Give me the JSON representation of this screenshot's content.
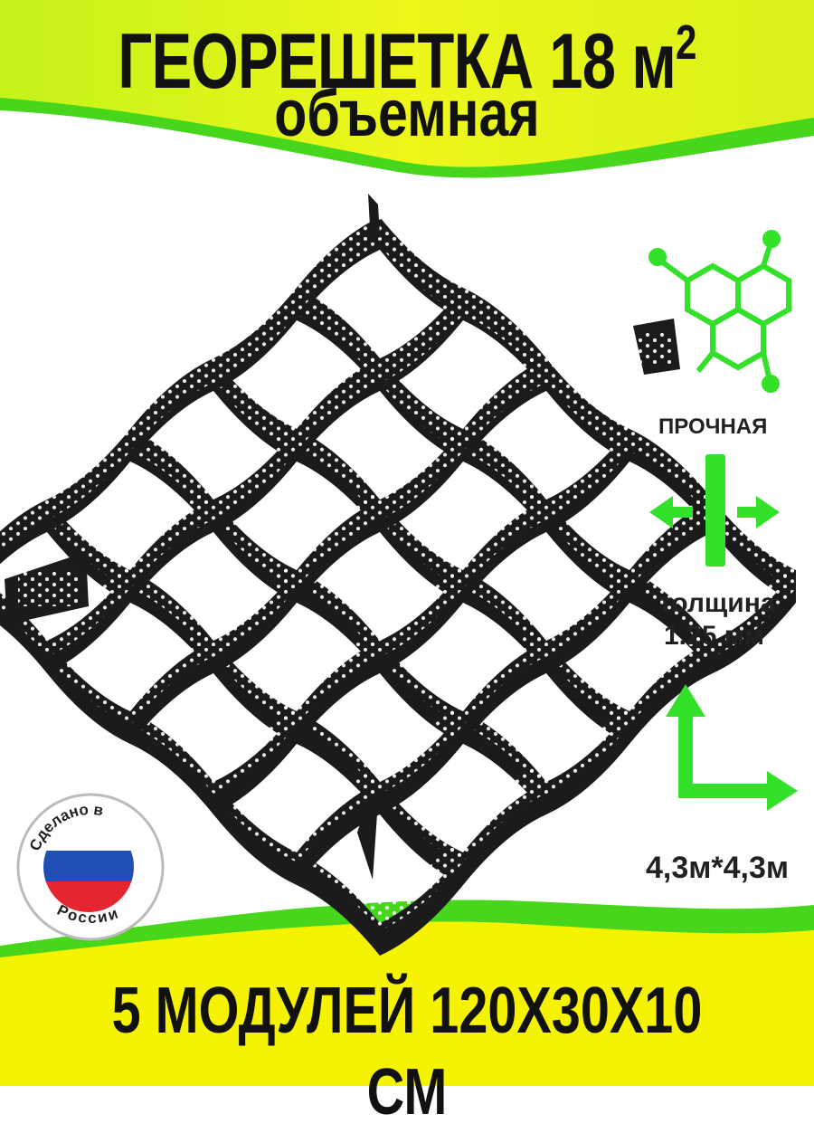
{
  "header": {
    "title": "ГЕОРЕШЕТКА 18 м",
    "title_superscript": "2",
    "subtitle": "объемная"
  },
  "features": {
    "strength_label": "ПРОЧНАЯ",
    "thickness_label": "толщина",
    "thickness_value": "1.25 мм",
    "size_value": "4,3м*4,3м"
  },
  "badge": {
    "top_text": "Сделано в",
    "bottom_text": "России",
    "flag_colors": [
      "#ffffff",
      "#1f4fb5",
      "#e3262f"
    ]
  },
  "footer": {
    "text": "5 МОДУЛЕЙ 120Х30Х10 СМ"
  },
  "colors": {
    "accent_green": "#33e02a",
    "banner_yellow": "#f6f300",
    "banner_green": "#47d61c",
    "product_black": "#1b1b1b"
  },
  "icons": [
    "molecule-icon",
    "arrows-split-icon",
    "corner-axes-icon",
    "russia-flag-icon"
  ]
}
